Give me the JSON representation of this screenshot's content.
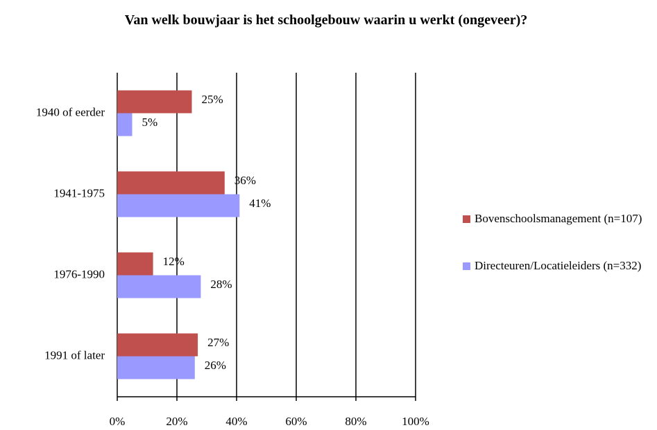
{
  "chart_data": {
    "type": "bar",
    "orientation": "horizontal",
    "title": "Van welk bouwjaar is het schoolgebouw waarin u werkt (ongeveer)?",
    "categories": [
      "1940 of eerder",
      "1941-1975",
      "1976-1990",
      "1991 of later"
    ],
    "series": [
      {
        "name": "Bovenschoolsmanagement (n=107)",
        "color": "#c0504d",
        "values": [
          25,
          36,
          12,
          27
        ],
        "value_labels": [
          "25%",
          "36%",
          "12%",
          "27%"
        ]
      },
      {
        "name": "Directeuren/Locatieleiders (n=332)",
        "color": "#9999ff",
        "values": [
          5,
          41,
          28,
          26
        ],
        "value_labels": [
          "5%",
          "41%",
          "28%",
          "26%"
        ]
      }
    ],
    "xlim": [
      0,
      100
    ],
    "xticks": [
      {
        "value": 0,
        "label": "0%"
      },
      {
        "value": 20,
        "label": "20%"
      },
      {
        "value": 40,
        "label": "40%"
      },
      {
        "value": 60,
        "label": "60%"
      },
      {
        "value": 80,
        "label": "80%"
      },
      {
        "value": 100,
        "label": "100%"
      }
    ],
    "grid": true,
    "legend": "right"
  }
}
